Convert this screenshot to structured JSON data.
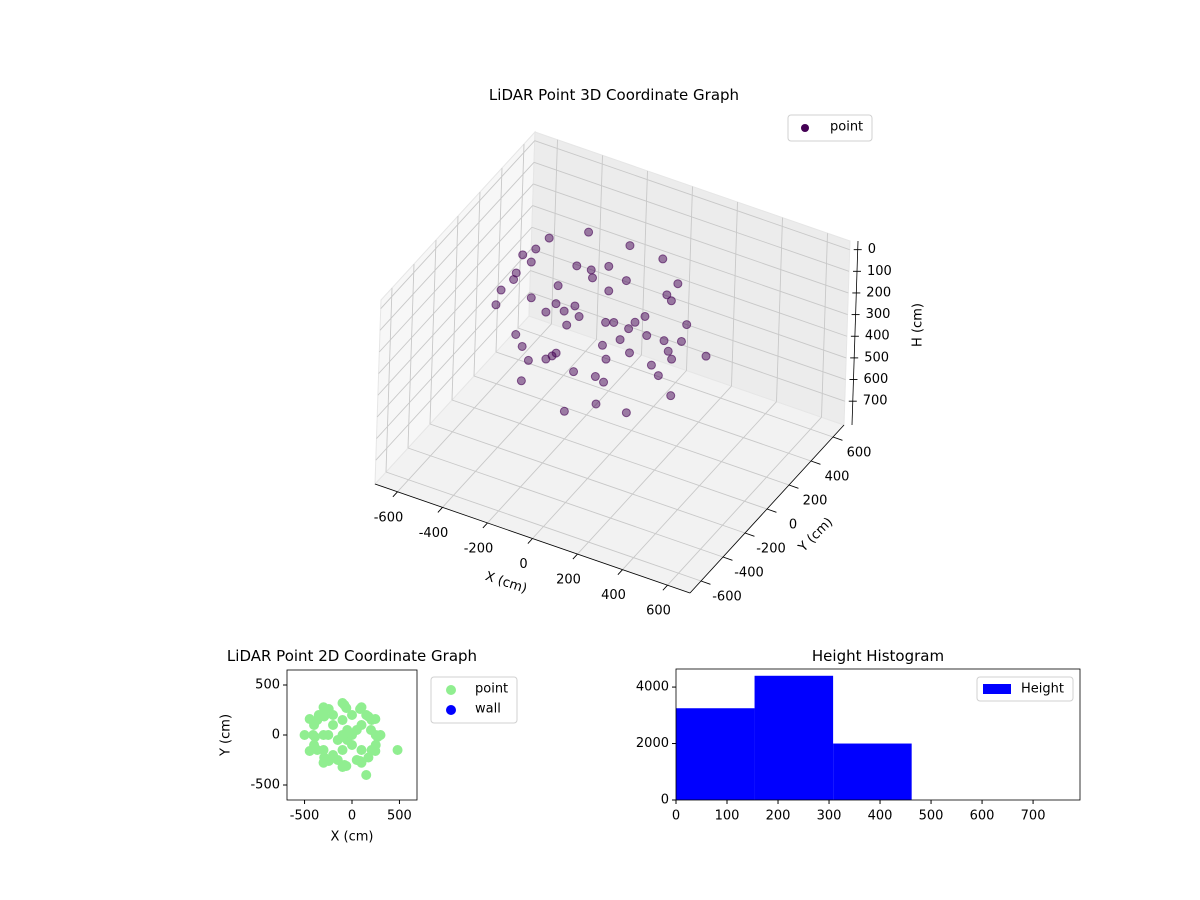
{
  "chart_data": [
    {
      "type": "scatter3d",
      "title": "LiDAR Point 3D Coordinate Graph",
      "xlabel": "X (cm)",
      "ylabel": "Y (cm)",
      "zlabel": "H (cm)",
      "xlim": [
        -700,
        700
      ],
      "ylim": [
        -700,
        700
      ],
      "zlim": [
        -40,
        810
      ],
      "zinverted": true,
      "xticks": [
        -600,
        -400,
        -200,
        0,
        200,
        400,
        600
      ],
      "yticks": [
        -600,
        -400,
        -200,
        0,
        200,
        400,
        600
      ],
      "zticks": [
        0,
        100,
        200,
        300,
        400,
        500,
        600,
        700
      ],
      "grid": true,
      "legend": "upper right",
      "series": [
        {
          "name": "point",
          "color": "#440154",
          "x": [
            250,
            206,
            85,
            -80,
            -245,
            -366,
            -410,
            -366,
            -245,
            -80,
            85,
            206,
            300,
            246,
            100,
            -100,
            -300,
            -446,
            -500,
            -446,
            -300,
            -100,
            100,
            246,
            270,
            173,
            -60,
            -293,
            -390,
            -293,
            -60,
            173,
            -100,
            -50,
            -150,
            0,
            -200,
            50,
            -100,
            -250,
            100,
            -50,
            480,
            150,
            -400,
            -400,
            -300,
            -200,
            -200,
            -100,
            0,
            100,
            200,
            0,
            -300,
            -350,
            150,
            250,
            -150,
            50
          ],
          "y": [
            0,
            150,
            260,
            300,
            260,
            150,
            0,
            -150,
            -260,
            -300,
            -260,
            -150,
            0,
            160,
            277,
            320,
            277,
            160,
            0,
            -160,
            -277,
            -320,
            -277,
            -160,
            -20,
            185,
            270,
            185,
            -20,
            -225,
            -310,
            -225,
            0,
            50,
            -50,
            -100,
            100,
            50,
            -150,
            0,
            100,
            -50,
            -150,
            -400,
            100,
            -100,
            0,
            -200,
            200,
            150,
            200,
            -150,
            50,
            0,
            -150,
            200,
            200,
            -100,
            -250,
            -250
          ],
          "z": [
            10,
            30,
            20,
            40,
            15,
            25,
            35,
            20,
            30,
            10,
            25,
            15,
            180,
            210,
            190,
            220,
            200,
            170,
            230,
            190,
            210,
            200,
            180,
            220,
            430,
            410,
            400,
            420,
            440,
            450,
            460,
            430,
            30,
            100,
            150,
            250,
            300,
            350,
            380,
            120,
            280,
            440,
            100,
            200,
            60,
            90,
            260,
            330,
            140,
            60,
            310,
            160,
            240,
            200,
            400,
            350,
            390,
            300,
            270,
            420
          ]
        }
      ]
    },
    {
      "type": "scatter",
      "title": "LiDAR Point 2D Coordinate Graph",
      "xlabel": "X (cm)",
      "ylabel": "Y (cm)",
      "xlim": [
        -685,
        685
      ],
      "ylim": [
        -650,
        650
      ],
      "xticks": [
        -500,
        0,
        500
      ],
      "yticks": [
        -500,
        0,
        500
      ],
      "legend": "outside right",
      "series": [
        {
          "name": "point",
          "color": "#90ee90",
          "x": [
            250,
            206,
            85,
            -80,
            -245,
            -366,
            -410,
            -366,
            -245,
            -80,
            85,
            206,
            300,
            246,
            100,
            -100,
            -300,
            -446,
            -500,
            -446,
            -300,
            -100,
            100,
            246,
            270,
            173,
            -60,
            -293,
            -390,
            -293,
            -60,
            173,
            -100,
            -50,
            -150,
            0,
            -200,
            50,
            -100,
            -250,
            100,
            -50,
            480,
            150,
            -400,
            -400,
            -300,
            -200,
            -200,
            -100,
            0,
            100,
            200,
            0,
            -300,
            -350,
            150,
            250,
            -150,
            50
          ],
          "y": [
            0,
            150,
            260,
            300,
            260,
            150,
            0,
            -150,
            -260,
            -300,
            -260,
            -150,
            0,
            160,
            277,
            320,
            277,
            160,
            0,
            -160,
            -277,
            -320,
            -277,
            -160,
            -20,
            185,
            270,
            185,
            -20,
            -225,
            -310,
            -225,
            0,
            50,
            -50,
            -100,
            100,
            50,
            -150,
            0,
            100,
            -50,
            -150,
            -400,
            100,
            -100,
            0,
            -200,
            200,
            150,
            200,
            -150,
            50,
            0,
            -150,
            200,
            200,
            -100,
            -250,
            -250
          ]
        },
        {
          "name": "wall",
          "color": "#0000ff",
          "x": [],
          "y": []
        }
      ]
    },
    {
      "type": "histogram",
      "title": "Height Histogram",
      "label": "Height",
      "color": "#0000ff",
      "bins": [
        0,
        154,
        308,
        462,
        616,
        770
      ],
      "counts": [
        3250,
        4400,
        2000,
        0,
        0
      ],
      "xlim": [
        0,
        792
      ],
      "ylim": [
        0,
        4640
      ],
      "xticks": [
        0,
        100,
        200,
        300,
        400,
        500,
        600,
        700
      ],
      "yticks": [
        0,
        2000,
        4000
      ],
      "legend": "upper right"
    }
  ]
}
